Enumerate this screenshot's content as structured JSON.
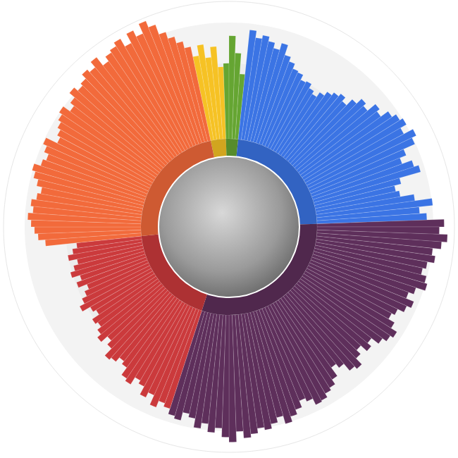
{
  "chart_data": {
    "type": "polar_bar",
    "tick_labels": false,
    "ylim": [
      0,
      200
    ],
    "series": [
      {
        "color": "#f6c224",
        "values": [
          125,
          140,
          120,
          135,
          105
        ]
      },
      {
        "color": "#65a532",
        "values": [
          110,
          150,
          125,
          95
        ]
      },
      {
        "color": "#3b74e4",
        "values": [
          160,
          150,
          155,
          148,
          140,
          150,
          135,
          128,
          120,
          118,
          110,
          112,
          105,
          100,
          108,
          115,
          120,
          125,
          118,
          130,
          140,
          135,
          150,
          145,
          158,
          165,
          170,
          160,
          175,
          168,
          150,
          140,
          155,
          162,
          130,
          120,
          125,
          145,
          170,
          150,
          160
        ]
      },
      {
        "color": "#5e2f5b",
        "values": [
          185,
          178,
          190,
          182,
          170,
          175,
          165,
          160,
          168,
          172,
          158,
          150,
          162,
          155,
          145,
          140,
          150,
          160,
          155,
          148,
          135,
          142,
          130,
          138,
          150,
          145,
          132,
          125,
          140,
          148,
          152,
          158,
          160,
          150,
          145,
          155,
          162,
          170,
          158,
          165,
          172,
          168,
          175,
          180,
          170,
          185,
          178,
          165,
          172,
          160,
          168,
          155,
          150,
          162,
          158
        ]
      },
      {
        "color": "#cb3a3c",
        "values": [
          150,
          145,
          155,
          140,
          148,
          135,
          130,
          142,
          138,
          125,
          120,
          128,
          132,
          118,
          110,
          122,
          115,
          108,
          112,
          100,
          105,
          118,
          110,
          102,
          95,
          108,
          100,
          112,
          105,
          98,
          110,
          102,
          95
        ]
      },
      {
        "color": "#f26a3b",
        "values": [
          140,
          150,
          155,
          160,
          165,
          158,
          162,
          155,
          150,
          158,
          165,
          170,
          160,
          155,
          162,
          168,
          150,
          155,
          160,
          165,
          170,
          158,
          165,
          175,
          168,
          172,
          180,
          175,
          185,
          170,
          178,
          182,
          188,
          175,
          190,
          180,
          195,
          185,
          170,
          160,
          150,
          140
        ]
      }
    ]
  }
}
